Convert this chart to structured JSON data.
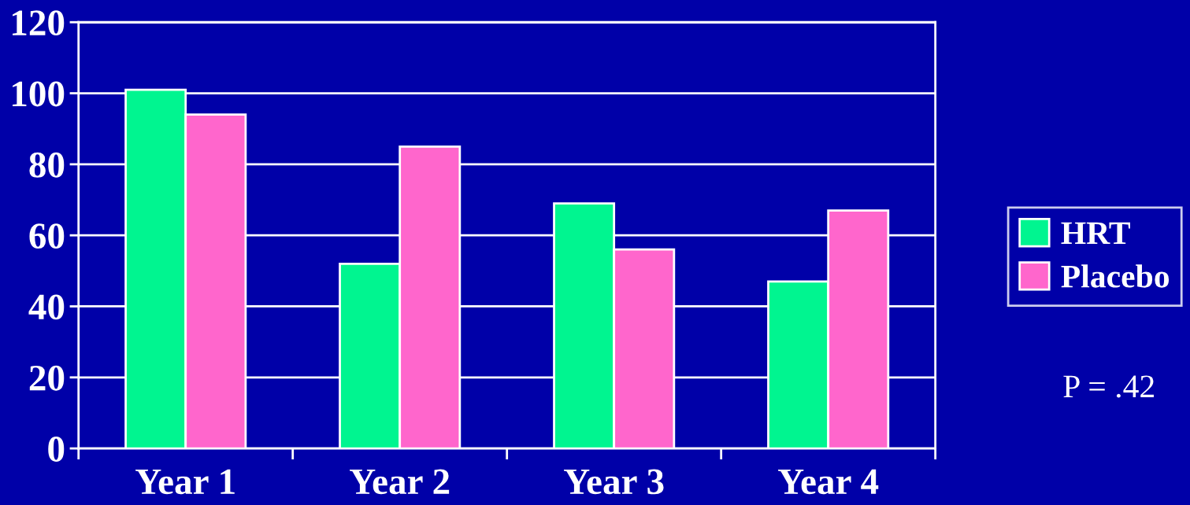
{
  "chart_data": {
    "type": "bar",
    "categories": [
      "Year 1",
      "Year 2",
      "Year 3",
      "Year 4"
    ],
    "series": [
      {
        "name": "HRT",
        "color": "#00f590",
        "values": [
          101,
          52,
          69,
          47
        ]
      },
      {
        "name": "Placebo",
        "color": "#ff66cc",
        "values": [
          94,
          85,
          56,
          67
        ]
      }
    ],
    "ylim": [
      0,
      120
    ],
    "yticks": [
      0,
      20,
      40,
      60,
      80,
      100,
      120
    ],
    "grid": "y",
    "legend": "right",
    "annotations": [
      "P = .42"
    ]
  }
}
